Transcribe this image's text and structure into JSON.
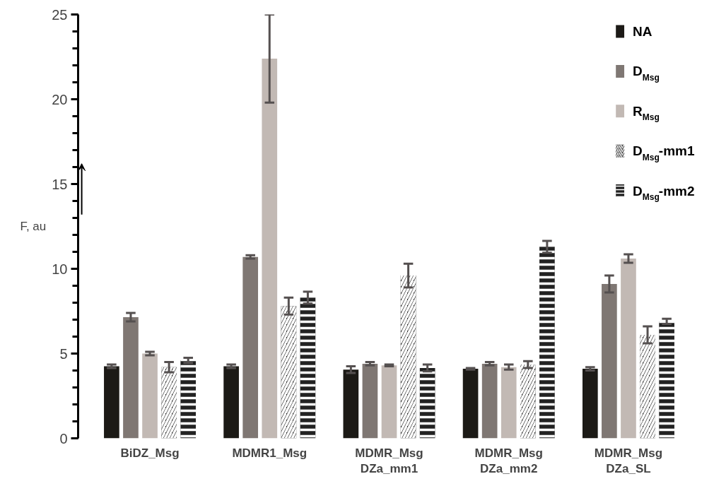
{
  "chart_data": {
    "type": "bar",
    "ylabel": "F, au",
    "categories": [
      "BiDZ_Msg",
      "MDMR1_Msg",
      "MDMR_Msg\nDZa_mm1",
      "MDMR_Msg\nDZa_mm2",
      "MDMR_Msg\nDZa_SL"
    ],
    "series": [
      {
        "name": "NA",
        "color": "#1c1a16",
        "values": [
          4.25,
          4.25,
          4.05,
          4.1,
          4.1
        ],
        "errors": [
          0.1,
          0.1,
          0.2,
          0.05,
          0.1
        ]
      },
      {
        "name": "D$_{Msg}$",
        "color": "#7f7773",
        "values": [
          7.15,
          10.7,
          4.4,
          4.4,
          9.1
        ],
        "errors": [
          0.25,
          0.1,
          0.1,
          0.1,
          0.5
        ]
      },
      {
        "name": "R$_{Msg}$",
        "color": "#c2b9b4",
        "values": [
          5.0,
          22.4,
          4.3,
          4.2,
          10.6
        ],
        "errors": [
          0.1,
          2.6,
          0.05,
          0.15,
          0.25
        ]
      },
      {
        "name": "D$_{Msg}$-mm1",
        "color": "#111111",
        "values": [
          4.2,
          7.8,
          9.6,
          4.35,
          6.1
        ],
        "errors": [
          0.3,
          0.5,
          0.7,
          0.2,
          0.5
        ]
      },
      {
        "name": "D$_{Msg}$-mm2",
        "color": "#222222",
        "values": [
          4.6,
          8.3,
          4.15,
          11.3,
          6.9
        ],
        "errors": [
          0.15,
          0.35,
          0.2,
          0.35,
          0.15
        ]
      }
    ],
    "ylim": [
      0,
      25
    ],
    "yticks": [
      0,
      5,
      10,
      15,
      20,
      25
    ],
    "grid": false,
    "legend": "top right"
  }
}
